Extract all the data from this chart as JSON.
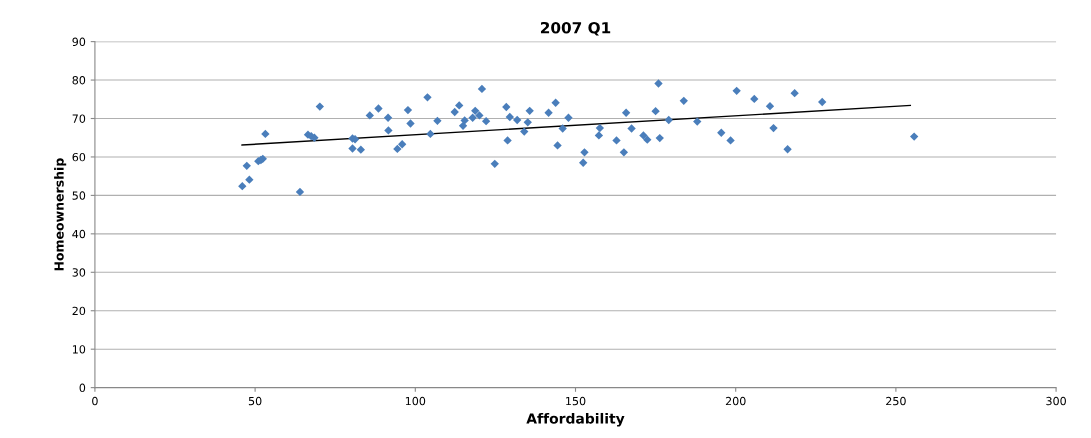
{
  "chart_data": {
    "type": "scatter",
    "title": "2007 Q1",
    "xlabel": "Affordability",
    "ylabel": "Homeownership",
    "xlim": [
      0,
      300
    ],
    "xticks": [
      0,
      50,
      100,
      150,
      200,
      250,
      300
    ],
    "ylim": [
      0,
      90
    ],
    "yticks": [
      0,
      10,
      20,
      30,
      40,
      50,
      60,
      70,
      80,
      90
    ],
    "grid": "y",
    "legend": false,
    "marker": "diamond",
    "series": [
      {
        "color": "#4a7ebb",
        "x": [
          46.0,
          48.2,
          47.4,
          51.0,
          51.8,
          52.4,
          53.2,
          64.0,
          66.5,
          67.5,
          68.5,
          70.2,
          80.4,
          83.0,
          80.4,
          81.2,
          85.8,
          88.5,
          91.5,
          91.6,
          94.4,
          95.9,
          97.7,
          98.5,
          103.8,
          104.7,
          106.9,
          112.3,
          113.7,
          114.9,
          115.4,
          117.9,
          118.7,
          120.0,
          120.8,
          122.1,
          124.8,
          128.4,
          128.8,
          129.5,
          131.8,
          134.0,
          135.1,
          135.7,
          141.6,
          143.8,
          144.4,
          146.0,
          147.8,
          152.4,
          152.8,
          157.3,
          157.6,
          162.8,
          165.1,
          165.8,
          167.5,
          171.2,
          172.4,
          175.0,
          175.9,
          176.3,
          179.1,
          183.8,
          188.0,
          195.5,
          198.4,
          200.3,
          205.8,
          210.7,
          211.8,
          216.2,
          218.4,
          227.0,
          255.7
        ],
        "values": [
          52.4,
          54.1,
          57.7,
          58.9,
          59.2,
          59.5,
          66.0,
          50.9,
          65.8,
          65.4,
          65.0,
          73.1,
          62.2,
          61.9,
          64.8,
          64.6,
          70.8,
          72.6,
          70.2,
          66.9,
          62.1,
          63.3,
          72.2,
          68.7,
          75.5,
          66.0,
          69.4,
          71.7,
          73.4,
          68.1,
          69.5,
          70.2,
          72.0,
          70.8,
          77.7,
          69.3,
          58.2,
          73.0,
          64.3,
          70.4,
          69.6,
          66.6,
          69.0,
          72.0,
          71.5,
          74.1,
          63.0,
          67.4,
          70.2,
          58.5,
          61.2,
          65.6,
          67.5,
          64.3,
          61.2,
          71.5,
          67.4,
          65.6,
          64.5,
          71.9,
          79.1,
          64.9,
          69.6,
          74.6,
          69.2,
          66.3,
          64.3,
          77.2,
          75.1,
          73.2,
          67.5,
          62.0,
          76.6,
          74.3,
          65.3
        ]
      },
      {
        "type": "line",
        "color": "#000000",
        "marker": "none",
        "x": [
          45.9,
          254.5
        ],
        "values": [
          63.1,
          73.4
        ]
      }
    ]
  }
}
